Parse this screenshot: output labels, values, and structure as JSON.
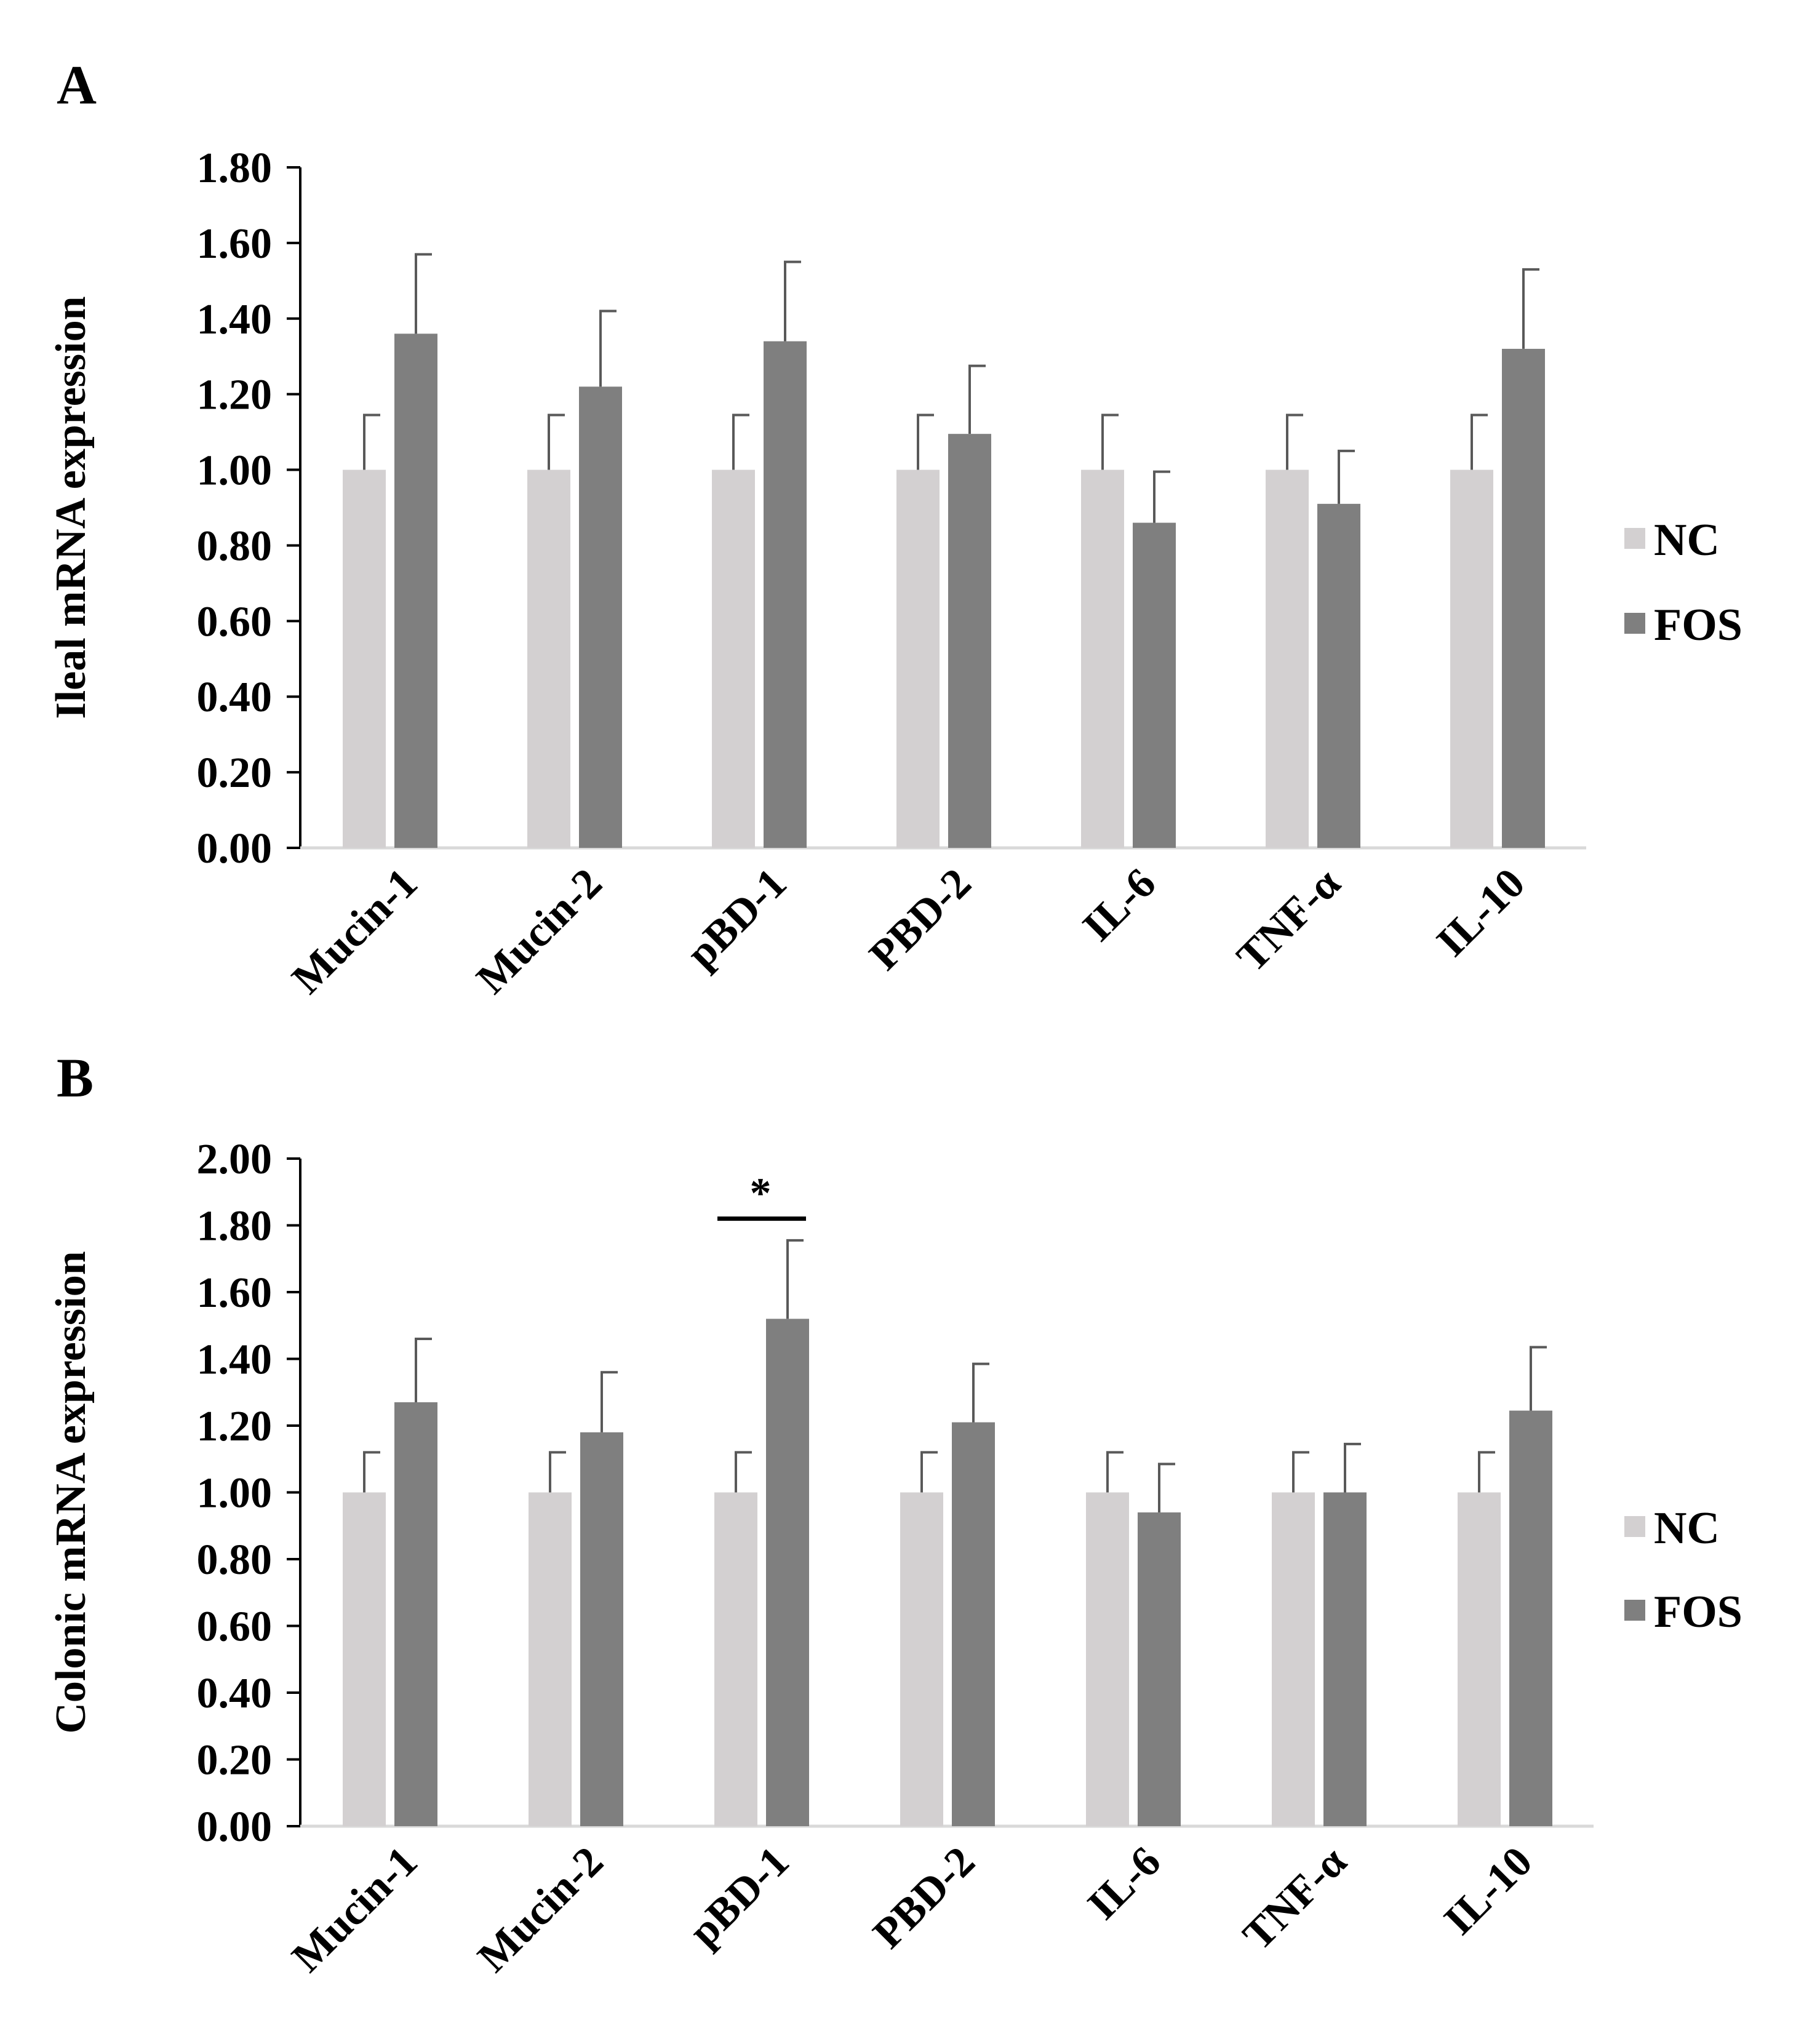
{
  "chart_data": [
    {
      "type": "bar",
      "panel_label": "A",
      "title": "",
      "xlabel": "",
      "ylabel": "Ileal mRNA expression",
      "ylim": [
        0,
        1.8
      ],
      "yticks": [
        "0.00",
        "0.20",
        "0.40",
        "0.60",
        "0.80",
        "1.00",
        "1.20",
        "1.40",
        "1.60",
        "1.80"
      ],
      "categories": [
        "Mucin-1",
        "Mucin-2",
        "pBD-1",
        "PBD-2",
        "IL-6",
        "TNF-α",
        "IL-10"
      ],
      "series": [
        {
          "name": "NC",
          "color": "#d3d0d1",
          "values": [
            1.0,
            1.0,
            1.0,
            1.0,
            1.0,
            1.0,
            1.0
          ],
          "errors": [
            0.145,
            0.145,
            0.145,
            0.145,
            0.145,
            0.145,
            0.145
          ]
        },
        {
          "name": "FOS",
          "color": "#7f7f7f",
          "values": [
            1.36,
            1.22,
            1.34,
            1.095,
            0.86,
            0.91,
            1.32
          ],
          "errors": [
            0.21,
            0.2,
            0.21,
            0.18,
            0.135,
            0.14,
            0.21
          ]
        }
      ],
      "legend": {
        "position": "right",
        "entries": [
          "NC",
          "FOS"
        ]
      },
      "grid": false,
      "annotations": []
    },
    {
      "type": "bar",
      "panel_label": "B",
      "title": "",
      "xlabel": "",
      "ylabel": "Colonic mRNA expression",
      "ylim": [
        0,
        2.0
      ],
      "yticks": [
        "0.00",
        "0.20",
        "0.40",
        "0.60",
        "0.80",
        "1.00",
        "1.20",
        "1.40",
        "1.60",
        "1.80",
        "2.00"
      ],
      "categories": [
        "Mucin-1",
        "Mucin-2",
        "pBD-1",
        "PBD-2",
        "IL-6",
        "TNF-α",
        "IL-10"
      ],
      "series": [
        {
          "name": "NC",
          "color": "#d3d0d1",
          "values": [
            1.0,
            1.0,
            1.0,
            1.0,
            1.0,
            1.0,
            1.0
          ],
          "errors": [
            0.12,
            0.12,
            0.12,
            0.12,
            0.12,
            0.12,
            0.12
          ]
        },
        {
          "name": "FOS",
          "color": "#7f7f7f",
          "values": [
            1.27,
            1.18,
            1.52,
            1.21,
            0.94,
            1.0,
            1.245
          ],
          "errors": [
            0.19,
            0.18,
            0.235,
            0.175,
            0.145,
            0.145,
            0.19
          ]
        }
      ],
      "legend": {
        "position": "right",
        "entries": [
          "NC",
          "FOS"
        ]
      },
      "grid": false,
      "annotations": [
        {
          "text": "*",
          "category": "pBD-1",
          "bracket_y": 1.82,
          "meaning": "significant difference NC vs FOS"
        }
      ]
    }
  ]
}
